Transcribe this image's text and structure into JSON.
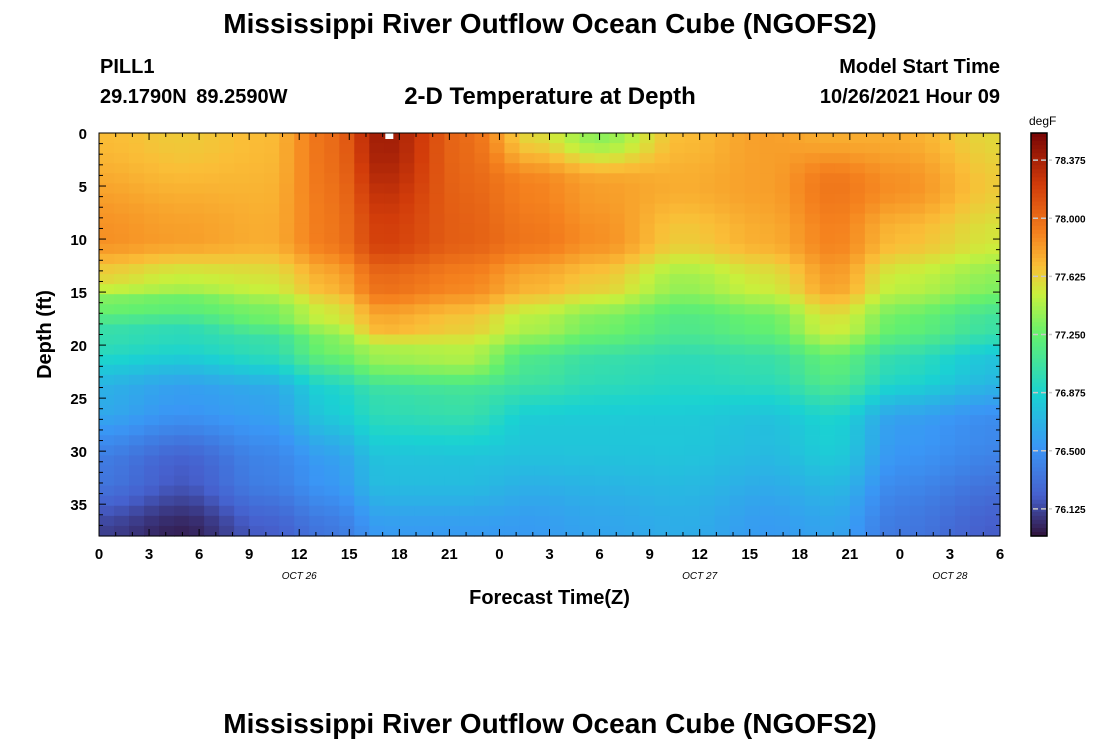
{
  "header": {
    "title": "Mississippi River Outflow Ocean Cube (NGOFS2)",
    "station_id": "PILL1",
    "station_coords": "29.1790N  89.2590W",
    "chart_title": "2-D Temperature at Depth",
    "start_label": "Model Start Time",
    "start_value": "10/26/2021 Hour 09"
  },
  "footer": {
    "title": "Mississippi River Outflow Ocean Cube (NGOFS2)"
  },
  "chart_data": {
    "type": "heatmap",
    "xlabel": "Forecast Time(Z)",
    "ylabel": "Depth (ft)",
    "xlim": [
      0,
      54
    ],
    "ylim": [
      0,
      38
    ],
    "y_inverted": true,
    "x_ticks": [
      0,
      3,
      6,
      9,
      12,
      15,
      18,
      21,
      24,
      27,
      30,
      33,
      36,
      39,
      42,
      45,
      48,
      51,
      54
    ],
    "x_tick_labels": [
      "0",
      "3",
      "6",
      "9",
      "12",
      "15",
      "18",
      "21",
      "0",
      "3",
      "6",
      "9",
      "12",
      "15",
      "18",
      "21",
      "0",
      "3",
      "6"
    ],
    "y_ticks": [
      0,
      5,
      10,
      15,
      20,
      25,
      30,
      35
    ],
    "y_tick_labels": [
      "0",
      "5",
      "10",
      "15",
      "20",
      "25",
      "30",
      "35"
    ],
    "date_labels": [
      {
        "x": 12,
        "text": "OCT 26"
      },
      {
        "x": 36,
        "text": "OCT 27"
      },
      {
        "x": 51,
        "text": "OCT 28"
      }
    ],
    "colorbar": {
      "unit": "degF",
      "range": [
        75.95,
        78.55
      ],
      "ticks": [
        76.125,
        76.5,
        76.875,
        77.25,
        77.625,
        78.0,
        78.375
      ],
      "tick_labels": [
        "76.125",
        "76.500",
        "76.875",
        "77.250",
        "77.625",
        "78.000",
        "78.375"
      ]
    },
    "grid": false,
    "profiles": [
      {
        "x": 0,
        "values": [
          [
            0,
            77.7
          ],
          [
            10,
            77.85
          ],
          [
            14,
            77.6
          ],
          [
            16,
            77.3
          ],
          [
            19,
            77.0
          ],
          [
            25,
            76.65
          ],
          [
            32,
            76.35
          ],
          [
            38,
            76.1
          ]
        ]
      },
      {
        "x": 5,
        "values": [
          [
            0,
            77.65
          ],
          [
            10,
            77.8
          ],
          [
            14,
            77.5
          ],
          [
            16,
            77.25
          ],
          [
            19,
            76.95
          ],
          [
            25,
            76.55
          ],
          [
            32,
            76.2
          ],
          [
            38,
            76.0
          ]
        ]
      },
      {
        "x": 10,
        "values": [
          [
            0,
            77.7
          ],
          [
            10,
            77.75
          ],
          [
            14,
            77.55
          ],
          [
            17,
            77.3
          ],
          [
            20,
            77.0
          ],
          [
            25,
            76.6
          ],
          [
            32,
            76.4
          ],
          [
            38,
            76.2
          ]
        ]
      },
      {
        "x": 14,
        "values": [
          [
            0,
            78.0
          ],
          [
            10,
            77.95
          ],
          [
            14,
            77.75
          ],
          [
            17,
            77.55
          ],
          [
            20,
            77.3
          ],
          [
            25,
            76.85
          ],
          [
            32,
            76.55
          ],
          [
            38,
            76.35
          ]
        ]
      },
      {
        "x": 17,
        "values": [
          [
            0,
            78.4
          ],
          [
            10,
            78.2
          ],
          [
            14,
            78.0
          ],
          [
            18,
            77.75
          ],
          [
            21,
            77.4
          ],
          [
            25,
            77.0
          ],
          [
            32,
            76.75
          ],
          [
            38,
            76.55
          ]
        ]
      },
      {
        "x": 22,
        "values": [
          [
            0,
            78.0
          ],
          [
            10,
            78.05
          ],
          [
            14,
            77.9
          ],
          [
            18,
            77.65
          ],
          [
            21,
            77.45
          ],
          [
            25,
            77.05
          ],
          [
            32,
            76.75
          ],
          [
            38,
            76.55
          ]
        ]
      },
      {
        "x": 26,
        "values": [
          [
            0,
            77.6
          ],
          [
            5,
            77.9
          ],
          [
            10,
            77.95
          ],
          [
            14,
            77.75
          ],
          [
            18,
            77.45
          ],
          [
            22,
            77.1
          ],
          [
            28,
            76.8
          ],
          [
            38,
            76.55
          ]
        ]
      },
      {
        "x": 30,
        "values": [
          [
            0,
            77.35
          ],
          [
            5,
            77.8
          ],
          [
            10,
            77.85
          ],
          [
            14,
            77.65
          ],
          [
            18,
            77.3
          ],
          [
            22,
            77.0
          ],
          [
            28,
            76.8
          ],
          [
            38,
            76.6
          ]
        ]
      },
      {
        "x": 35,
        "values": [
          [
            0,
            77.7
          ],
          [
            5,
            77.75
          ],
          [
            10,
            77.65
          ],
          [
            14,
            77.4
          ],
          [
            18,
            77.15
          ],
          [
            22,
            76.95
          ],
          [
            28,
            76.8
          ],
          [
            38,
            76.65
          ]
        ]
      },
      {
        "x": 40,
        "values": [
          [
            0,
            77.8
          ],
          [
            5,
            77.8
          ],
          [
            10,
            77.75
          ],
          [
            14,
            77.55
          ],
          [
            18,
            77.25
          ],
          [
            22,
            77.0
          ],
          [
            28,
            76.75
          ],
          [
            38,
            76.55
          ]
        ]
      },
      {
        "x": 44,
        "values": [
          [
            0,
            77.75
          ],
          [
            5,
            77.95
          ],
          [
            10,
            77.9
          ],
          [
            14,
            77.8
          ],
          [
            18,
            77.55
          ],
          [
            22,
            77.2
          ],
          [
            28,
            76.85
          ],
          [
            38,
            76.6
          ]
        ]
      },
      {
        "x": 48,
        "values": [
          [
            0,
            77.75
          ],
          [
            5,
            77.85
          ],
          [
            10,
            77.7
          ],
          [
            14,
            77.5
          ],
          [
            18,
            77.25
          ],
          [
            22,
            76.95
          ],
          [
            28,
            76.55
          ],
          [
            38,
            76.35
          ]
        ]
      },
      {
        "x": 54,
        "values": [
          [
            0,
            77.6
          ],
          [
            5,
            77.65
          ],
          [
            10,
            77.55
          ],
          [
            14,
            77.35
          ],
          [
            18,
            77.05
          ],
          [
            22,
            76.75
          ],
          [
            28,
            76.45
          ],
          [
            38,
            76.2
          ]
        ]
      }
    ]
  }
}
